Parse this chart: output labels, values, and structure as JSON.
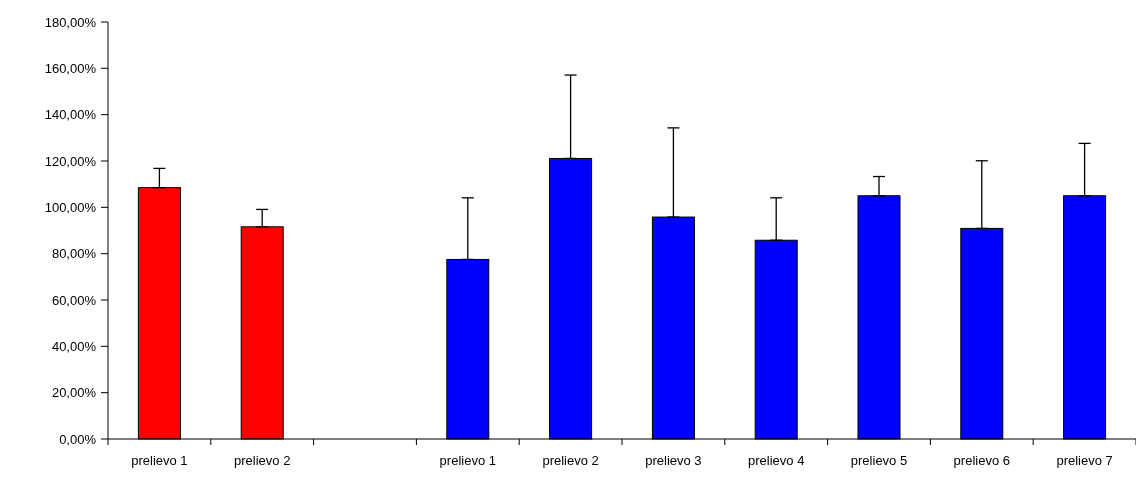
{
  "chart_data": {
    "type": "bar",
    "categories": [
      "prelievo 1",
      "prelievo 2",
      null,
      "prelievo 1",
      "prelievo 2",
      "prelievo 3",
      "prelievo 4",
      "prelievo 5",
      "prelievo 6",
      "prelievo 7"
    ],
    "values": [
      108.5,
      91.6,
      null,
      77.5,
      121.1,
      95.8,
      85.8,
      105,
      90.9,
      105
    ],
    "colors": [
      "#ff0000",
      "#ff0000",
      null,
      "#0000ff",
      "#0000ff",
      "#0000ff",
      "#0000ff",
      "#0000ff",
      "#0000ff",
      "#0000ff"
    ],
    "errors": [
      [
        108.5,
        116.8
      ],
      [
        91.6,
        99.1
      ],
      null,
      [
        77.5,
        104.1
      ],
      [
        121.1,
        157.1
      ],
      [
        95.8,
        134.3
      ],
      [
        85.8,
        104.1
      ],
      [
        105,
        113.3
      ],
      [
        90.9,
        120.1
      ],
      [
        105,
        127.6
      ]
    ],
    "ylim": [
      0,
      180
    ],
    "yticks": [
      {
        "value": 0,
        "label": "0,00%"
      },
      {
        "value": 20,
        "label": "20,00%"
      },
      {
        "value": 40,
        "label": "40,00%"
      },
      {
        "value": 60,
        "label": "60,00%"
      },
      {
        "value": 80,
        "label": "80,00%"
      },
      {
        "value": 100,
        "label": "100,00%"
      },
      {
        "value": 120,
        "label": "120,00%"
      },
      {
        "value": 140,
        "label": "140,00%"
      },
      {
        "value": 160,
        "label": "160,00%"
      },
      {
        "value": 180,
        "label": "180,00%"
      }
    ],
    "grid": false
  }
}
